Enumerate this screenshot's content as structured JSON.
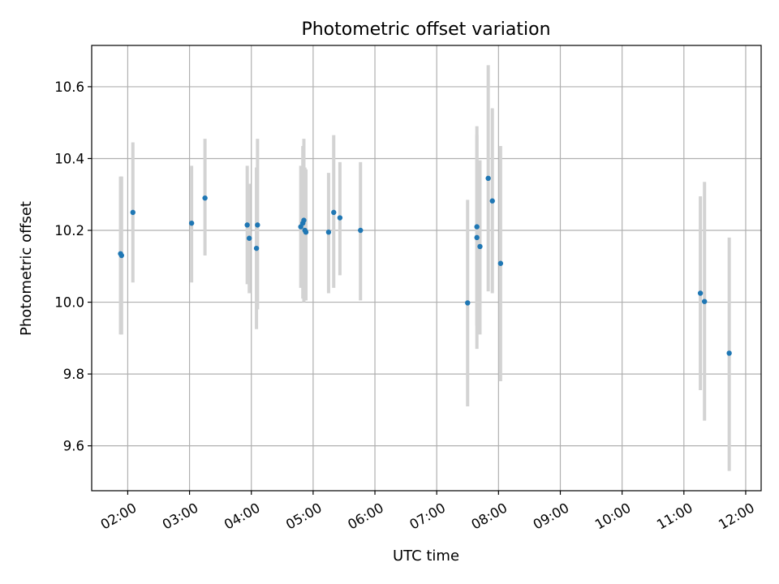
{
  "chart_data": {
    "type": "scatter",
    "title": "Photometric offset variation",
    "xlabel": "UTC time",
    "ylabel": "Photometric offset",
    "x_unit": "UTC time (HH:MM)",
    "xlim": [
      "01:25",
      "12:15"
    ],
    "ylim": [
      9.475,
      10.715
    ],
    "x_ticks": [
      "02:00",
      "03:00",
      "04:00",
      "05:00",
      "06:00",
      "07:00",
      "08:00",
      "09:00",
      "10:00",
      "11:00",
      "12:00"
    ],
    "y_ticks": [
      9.6,
      9.8,
      10.0,
      10.2,
      10.4,
      10.6
    ],
    "y_tick_labels": [
      "9.6",
      "9.8",
      "10.0",
      "10.2",
      "10.4",
      "10.6"
    ],
    "grid": true,
    "legend": "none",
    "point_color": "#1f77b4",
    "error_color": "#d3d3d3",
    "points": [
      {
        "x": "01:53",
        "y": 10.135,
        "low": 9.91,
        "high": 10.35
      },
      {
        "x": "01:54",
        "y": 10.13,
        "low": 9.91,
        "high": 10.35
      },
      {
        "x": "02:05",
        "y": 10.25,
        "low": 10.055,
        "high": 10.445
      },
      {
        "x": "03:02",
        "y": 10.22,
        "low": 10.055,
        "high": 10.38
      },
      {
        "x": "03:15",
        "y": 10.29,
        "low": 10.13,
        "high": 10.455
      },
      {
        "x": "03:56",
        "y": 10.215,
        "low": 10.05,
        "high": 10.38
      },
      {
        "x": "03:58",
        "y": 10.178,
        "low": 10.025,
        "high": 10.33
      },
      {
        "x": "04:05",
        "y": 10.15,
        "low": 9.925,
        "high": 10.375
      },
      {
        "x": "04:06",
        "y": 10.215,
        "low": 9.98,
        "high": 10.455
      },
      {
        "x": "04:48",
        "y": 10.21,
        "low": 10.04,
        "high": 10.38
      },
      {
        "x": "04:50",
        "y": 10.22,
        "low": 10.01,
        "high": 10.435
      },
      {
        "x": "04:51",
        "y": 10.228,
        "low": 10.0,
        "high": 10.455
      },
      {
        "x": "04:52",
        "y": 10.2,
        "low": 10.005,
        "high": 10.375
      },
      {
        "x": "04:53",
        "y": 10.195,
        "low": 10.005,
        "high": 10.37
      },
      {
        "x": "05:15",
        "y": 10.195,
        "low": 10.025,
        "high": 10.36
      },
      {
        "x": "05:20",
        "y": 10.25,
        "low": 10.04,
        "high": 10.465
      },
      {
        "x": "05:26",
        "y": 10.235,
        "low": 10.075,
        "high": 10.39
      },
      {
        "x": "05:46",
        "y": 10.2,
        "low": 10.005,
        "high": 10.39
      },
      {
        "x": "07:30",
        "y": 9.998,
        "low": 9.71,
        "high": 10.285
      },
      {
        "x": "07:39",
        "y": 10.18,
        "low": 9.87,
        "high": 10.465
      },
      {
        "x": "07:39",
        "y": 10.21,
        "low": 9.935,
        "high": 10.49
      },
      {
        "x": "07:42",
        "y": 10.155,
        "low": 9.91,
        "high": 10.395
      },
      {
        "x": "07:50",
        "y": 10.345,
        "low": 10.03,
        "high": 10.66
      },
      {
        "x": "07:54",
        "y": 10.282,
        "low": 10.025,
        "high": 10.54
      },
      {
        "x": "08:02",
        "y": 10.108,
        "low": 9.78,
        "high": 10.435
      },
      {
        "x": "11:16",
        "y": 10.025,
        "low": 9.755,
        "high": 10.295
      },
      {
        "x": "11:20",
        "y": 10.002,
        "low": 9.67,
        "high": 10.335
      },
      {
        "x": "11:44",
        "y": 9.858,
        "low": 9.53,
        "high": 10.18
      }
    ]
  }
}
